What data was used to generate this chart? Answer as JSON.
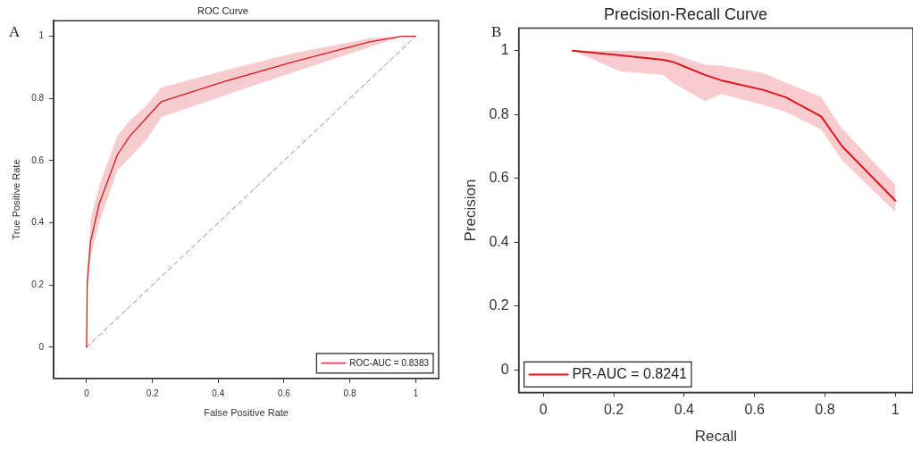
{
  "chart_data": [
    {
      "type": "line",
      "title": "ROC Curve",
      "xlabel": "False Positive Rate",
      "ylabel": "True Positive Rate",
      "annotations": [
        "A"
      ],
      "xlim": [
        -0.1,
        1.07
      ],
      "ylim": [
        -0.1,
        1.05
      ],
      "xticks": [
        0,
        0.2,
        0.4,
        0.6,
        0.8,
        1
      ],
      "yticks": [
        0,
        0.2,
        0.4,
        0.6,
        0.8,
        1
      ],
      "legend": "bottom right",
      "marker": "none",
      "series": [
        {
          "name": "ROC-AUC = 0.8383",
          "color": "#d7191f",
          "x": [
            0,
            0.002,
            0.012,
            0.038,
            0.094,
            0.132,
            0.184,
            0.227,
            0.42,
            0.63,
            0.86,
            0.96,
            1
          ],
          "values": [
            0,
            0.21,
            0.34,
            0.46,
            0.62,
            0.68,
            0.74,
            0.79,
            0.855,
            0.918,
            0.982,
            1,
            1
          ],
          "lower": [
            0,
            0.19,
            0.29,
            0.4,
            0.57,
            0.61,
            0.67,
            0.74,
            0.81,
            0.885,
            0.965,
            1,
            1
          ],
          "upper": [
            0,
            0.23,
            0.41,
            0.52,
            0.68,
            0.73,
            0.78,
            0.835,
            0.89,
            0.946,
            0.993,
            1,
            1
          ]
        },
        {
          "color": "#888888",
          "line_style": "dashed",
          "x": [
            0,
            1
          ],
          "values": [
            0,
            1
          ]
        }
      ]
    },
    {
      "type": "line",
      "title": "Precision-Recall Curve",
      "xlabel": "Recall",
      "ylabel": "Precision",
      "annotations": [
        "B"
      ],
      "xlim": [
        -0.07,
        1.05
      ],
      "ylim": [
        -0.07,
        1.07
      ],
      "xticks": [
        0,
        0.2,
        0.4,
        0.6,
        0.8,
        1
      ],
      "yticks": [
        0,
        0.2,
        0.4,
        0.6,
        0.8,
        1
      ],
      "legend": "bottom left",
      "marker": "none",
      "series": [
        {
          "name": "PR-AUC = 0.8241",
          "color": "#e0141e",
          "x": [
            0.083,
            0.22,
            0.34,
            0.367,
            0.459,
            0.505,
            0.624,
            0.688,
            0.789,
            0.849,
            1
          ],
          "values": [
            1,
            0.985,
            0.971,
            0.965,
            0.924,
            0.907,
            0.877,
            0.854,
            0.794,
            0.7,
            0.53
          ],
          "lower": [
            1,
            0.935,
            0.924,
            0.9,
            0.842,
            0.864,
            0.83,
            0.808,
            0.753,
            0.656,
            0.495
          ],
          "upper": [
            1,
            1,
            0.997,
            0.99,
            0.956,
            0.953,
            0.93,
            0.9,
            0.855,
            0.755,
            0.58
          ]
        }
      ]
    }
  ]
}
